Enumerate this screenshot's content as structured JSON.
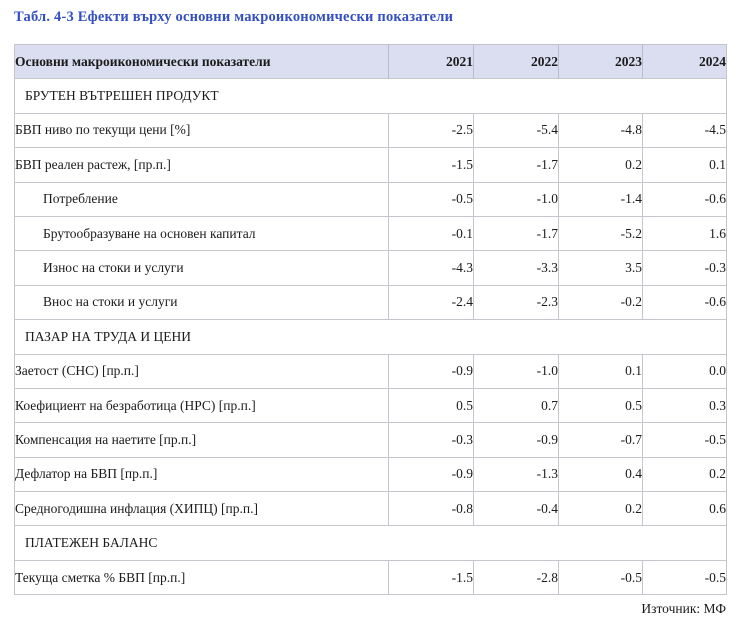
{
  "title": "Табл. 4-3 Ефекти върху основни макроикономически показатели",
  "source_note": "Източник: МФ",
  "colors": {
    "title_blue": "#3350c2",
    "header_background": "#dadef0",
    "grid_line": "#c6c6cc",
    "text": "#1b1b1b"
  },
  "table": {
    "header": {
      "label": "Основни макроикономически показатели",
      "years": [
        "2021",
        "2022",
        "2023",
        "2024"
      ]
    },
    "rows": [
      {
        "type": "section",
        "label": "БРУТЕН ВЪТРЕШЕН ПРОДУКТ"
      },
      {
        "type": "data",
        "indent": false,
        "label": "БВП ниво по текущи цени [%]",
        "values": [
          "-2.5",
          "-5.4",
          "-4.8",
          "-4.5"
        ]
      },
      {
        "type": "data",
        "indent": false,
        "label": "БВП реален растеж, [пр.п.]",
        "values": [
          "-1.5",
          "-1.7",
          "0.2",
          "0.1"
        ]
      },
      {
        "type": "data",
        "indent": true,
        "label": "Потребление",
        "values": [
          "-0.5",
          "-1.0",
          "-1.4",
          "-0.6"
        ]
      },
      {
        "type": "data",
        "indent": true,
        "label": "Брутообразуване на основен капитал",
        "values": [
          "-0.1",
          "-1.7",
          "-5.2",
          "1.6"
        ]
      },
      {
        "type": "data",
        "indent": true,
        "label": "Износ на стоки и услуги",
        "values": [
          "-4.3",
          "-3.3",
          "3.5",
          "-0.3"
        ]
      },
      {
        "type": "data",
        "indent": true,
        "label": "Внос на стоки и услуги",
        "values": [
          "-2.4",
          "-2.3",
          "-0.2",
          "-0.6"
        ]
      },
      {
        "type": "section",
        "label": "ПАЗАР НА ТРУДА И ЦЕНИ"
      },
      {
        "type": "data",
        "indent": false,
        "label": "Заетост (СНС) [пр.п.]",
        "values": [
          "-0.9",
          "-1.0",
          "0.1",
          "0.0"
        ]
      },
      {
        "type": "data",
        "indent": false,
        "label": "Коефициент на безработица (НРС) [пр.п.]",
        "values": [
          "0.5",
          "0.7",
          "0.5",
          "0.3"
        ]
      },
      {
        "type": "data",
        "indent": false,
        "label": "Компенсация на наетите [пр.п.]",
        "values": [
          "-0.3",
          "-0.9",
          "-0.7",
          "-0.5"
        ]
      },
      {
        "type": "data",
        "indent": false,
        "label": "Дефлатор на БВП [пр.п.]",
        "values": [
          "-0.9",
          "-1.3",
          "0.4",
          "0.2"
        ]
      },
      {
        "type": "data",
        "indent": false,
        "label": "Средногодишна инфлация (ХИПЦ) [пр.п.]",
        "values": [
          "-0.8",
          "-0.4",
          "0.2",
          "0.6"
        ]
      },
      {
        "type": "section",
        "label": "ПЛАТЕЖЕН БАЛАНС"
      },
      {
        "type": "data",
        "indent": false,
        "label": "Текуща сметка % БВП [пр.п.]",
        "values": [
          "-1.5",
          "-2.8",
          "-0.5",
          "-0.5"
        ]
      }
    ]
  }
}
